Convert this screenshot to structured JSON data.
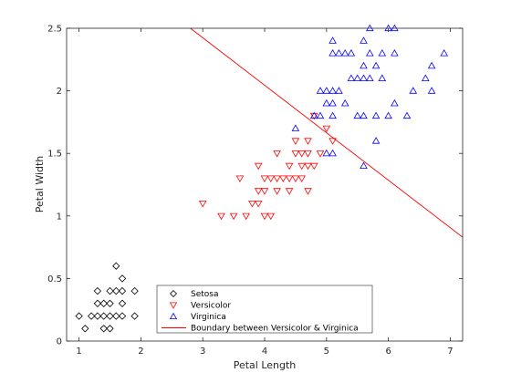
{
  "chart_data": {
    "type": "scatter",
    "title": "",
    "xlabel": "Petal Length",
    "ylabel": "Petal Width",
    "xlim": [
      0.8,
      7.2
    ],
    "ylim": [
      0,
      2.5
    ],
    "xticks": [
      1,
      2,
      3,
      4,
      5,
      6,
      7
    ],
    "xtick_labels": [
      "1",
      "2",
      "3",
      "4",
      "5",
      "6",
      "7"
    ],
    "yticks": [
      0,
      0.5,
      1,
      1.5,
      2,
      2.5
    ],
    "ytick_labels": [
      "0",
      "0.5",
      "1",
      "1.5",
      "2",
      "2.5"
    ],
    "grid": false,
    "legend_position": "bottom-left inside",
    "series": [
      {
        "name": "Setosa",
        "marker": "diamond",
        "color": "#000000",
        "points": [
          [
            1.0,
            0.2
          ],
          [
            1.1,
            0.1
          ],
          [
            1.2,
            0.2
          ],
          [
            1.3,
            0.2
          ],
          [
            1.3,
            0.3
          ],
          [
            1.3,
            0.4
          ],
          [
            1.4,
            0.1
          ],
          [
            1.4,
            0.2
          ],
          [
            1.4,
            0.3
          ],
          [
            1.5,
            0.1
          ],
          [
            1.5,
            0.2
          ],
          [
            1.5,
            0.3
          ],
          [
            1.5,
            0.4
          ],
          [
            1.6,
            0.2
          ],
          [
            1.6,
            0.4
          ],
          [
            1.6,
            0.6
          ],
          [
            1.7,
            0.2
          ],
          [
            1.7,
            0.3
          ],
          [
            1.7,
            0.4
          ],
          [
            1.7,
            0.5
          ],
          [
            1.9,
            0.2
          ],
          [
            1.9,
            0.4
          ]
        ]
      },
      {
        "name": "Versicolor",
        "marker": "triangle-down",
        "color": "#ff0000",
        "points": [
          [
            3.0,
            1.1
          ],
          [
            3.3,
            1.0
          ],
          [
            3.5,
            1.0
          ],
          [
            3.6,
            1.3
          ],
          [
            3.7,
            1.0
          ],
          [
            3.8,
            1.1
          ],
          [
            3.9,
            1.1
          ],
          [
            3.9,
            1.2
          ],
          [
            3.9,
            1.4
          ],
          [
            4.0,
            1.0
          ],
          [
            4.0,
            1.2
          ],
          [
            4.0,
            1.3
          ],
          [
            4.1,
            1.0
          ],
          [
            4.1,
            1.3
          ],
          [
            4.2,
            1.2
          ],
          [
            4.2,
            1.3
          ],
          [
            4.2,
            1.5
          ],
          [
            4.3,
            1.3
          ],
          [
            4.4,
            1.2
          ],
          [
            4.4,
            1.3
          ],
          [
            4.4,
            1.4
          ],
          [
            4.5,
            1.3
          ],
          [
            4.5,
            1.5
          ],
          [
            4.5,
            1.6
          ],
          [
            4.6,
            1.3
          ],
          [
            4.6,
            1.4
          ],
          [
            4.6,
            1.5
          ],
          [
            4.7,
            1.2
          ],
          [
            4.7,
            1.4
          ],
          [
            4.7,
            1.5
          ],
          [
            4.7,
            1.6
          ],
          [
            4.8,
            1.4
          ],
          [
            4.8,
            1.8
          ],
          [
            4.9,
            1.5
          ],
          [
            5.0,
            1.7
          ],
          [
            5.1,
            1.6
          ]
        ]
      },
      {
        "name": "Virginica",
        "marker": "triangle-up",
        "color": "#0000ff",
        "points": [
          [
            4.5,
            1.7
          ],
          [
            4.8,
            1.8
          ],
          [
            4.9,
            1.8
          ],
          [
            4.9,
            2.0
          ],
          [
            5.0,
            1.5
          ],
          [
            5.0,
            1.9
          ],
          [
            5.0,
            2.0
          ],
          [
            5.1,
            1.5
          ],
          [
            5.1,
            1.8
          ],
          [
            5.1,
            1.9
          ],
          [
            5.1,
            2.0
          ],
          [
            5.1,
            2.3
          ],
          [
            5.1,
            2.4
          ],
          [
            5.2,
            2.0
          ],
          [
            5.2,
            2.3
          ],
          [
            5.3,
            1.9
          ],
          [
            5.3,
            2.3
          ],
          [
            5.4,
            2.1
          ],
          [
            5.4,
            2.3
          ],
          [
            5.5,
            1.8
          ],
          [
            5.5,
            2.1
          ],
          [
            5.6,
            1.4
          ],
          [
            5.6,
            1.8
          ],
          [
            5.6,
            2.1
          ],
          [
            5.6,
            2.2
          ],
          [
            5.6,
            2.4
          ],
          [
            5.7,
            2.1
          ],
          [
            5.7,
            2.3
          ],
          [
            5.7,
            2.5
          ],
          [
            5.8,
            1.6
          ],
          [
            5.8,
            1.8
          ],
          [
            5.8,
            2.2
          ],
          [
            5.9,
            2.1
          ],
          [
            5.9,
            2.3
          ],
          [
            6.0,
            1.8
          ],
          [
            6.0,
            2.5
          ],
          [
            6.1,
            1.9
          ],
          [
            6.1,
            2.3
          ],
          [
            6.1,
            2.5
          ],
          [
            6.3,
            1.8
          ],
          [
            6.4,
            2.0
          ],
          [
            6.6,
            2.1
          ],
          [
            6.7,
            2.0
          ],
          [
            6.7,
            2.2
          ],
          [
            6.9,
            2.3
          ]
        ]
      }
    ],
    "lines": [
      {
        "name": "Boundary between Versicolor & Virginica",
        "color": "#ff0000",
        "points": [
          [
            2.8,
            2.5
          ],
          [
            7.2,
            0.83
          ]
        ]
      }
    ]
  }
}
